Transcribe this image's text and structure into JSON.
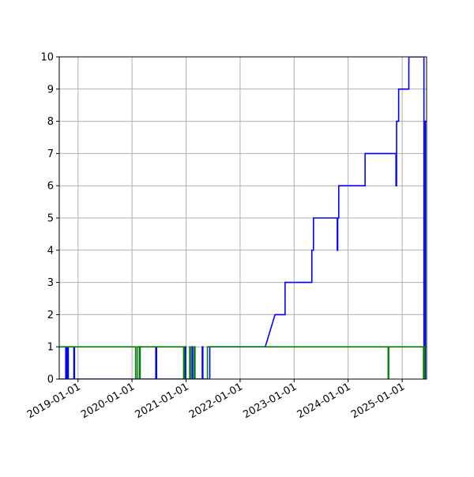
{
  "chart_data": {
    "type": "line",
    "title": "",
    "xlabel": "",
    "ylabel": "",
    "x_axis_type": "date",
    "xlim": [
      "2018-08-27",
      "2025-06-15"
    ],
    "ylim": [
      0,
      10
    ],
    "x_ticks": [
      "2019-01-01",
      "2020-01-01",
      "2021-01-01",
      "2022-01-01",
      "2023-01-01",
      "2024-01-01",
      "2025-01-01"
    ],
    "y_ticks": [
      0,
      1,
      2,
      3,
      4,
      5,
      6,
      7,
      8,
      9,
      10
    ],
    "grid": true,
    "legend": null,
    "series": [
      {
        "color": "#0000ff",
        "points": [
          [
            "2018-08-27",
            0
          ],
          [
            "2018-10-10",
            0
          ],
          [
            "2018-10-10",
            1
          ],
          [
            "2018-10-13",
            1
          ],
          [
            "2018-10-13",
            0
          ],
          [
            "2018-10-16",
            0
          ],
          [
            "2018-10-16",
            1
          ],
          [
            "2018-10-20",
            1
          ],
          [
            "2018-10-20",
            0
          ],
          [
            "2018-10-23",
            0
          ],
          [
            "2018-10-23",
            1
          ],
          [
            "2018-10-27",
            1
          ],
          [
            "2018-10-27",
            0
          ],
          [
            "2018-12-04",
            0
          ],
          [
            "2018-12-04",
            1
          ],
          [
            "2018-12-08",
            1
          ],
          [
            "2018-12-08",
            0
          ],
          [
            "2020-02-20",
            0
          ],
          [
            "2020-02-20",
            1
          ],
          [
            "2020-02-25",
            1
          ],
          [
            "2020-02-25",
            0
          ],
          [
            "2020-06-10",
            0
          ],
          [
            "2020-06-10",
            1
          ],
          [
            "2020-06-15",
            1
          ],
          [
            "2020-06-15",
            0
          ],
          [
            "2020-12-25",
            0
          ],
          [
            "2020-12-25",
            1
          ],
          [
            "2020-12-29",
            1
          ],
          [
            "2020-12-29",
            0
          ],
          [
            "2021-02-10",
            0
          ],
          [
            "2021-02-10",
            1
          ],
          [
            "2021-02-14",
            1
          ],
          [
            "2021-02-14",
            0
          ],
          [
            "2021-04-20",
            0
          ],
          [
            "2021-04-20",
            1
          ],
          [
            "2021-04-24",
            1
          ],
          [
            "2021-04-24",
            0
          ],
          [
            "2021-06-10",
            0
          ],
          [
            "2021-06-10",
            1
          ],
          [
            "2022-06-20",
            1
          ],
          [
            "2022-08-25",
            2
          ],
          [
            "2022-11-01",
            2
          ],
          [
            "2022-11-01",
            3
          ],
          [
            "2023-05-01",
            3
          ],
          [
            "2023-05-01",
            4
          ],
          [
            "2023-05-12",
            4
          ],
          [
            "2023-05-12",
            5
          ],
          [
            "2023-10-20",
            5
          ],
          [
            "2023-10-20",
            4
          ],
          [
            "2023-10-23",
            4
          ],
          [
            "2023-10-23",
            5
          ],
          [
            "2023-10-30",
            5
          ],
          [
            "2023-10-30",
            6
          ],
          [
            "2024-04-25",
            6
          ],
          [
            "2024-04-25",
            7
          ],
          [
            "2024-11-20",
            7
          ],
          [
            "2024-11-20",
            6
          ],
          [
            "2024-11-24",
            6
          ],
          [
            "2024-11-24",
            8
          ],
          [
            "2024-12-08",
            8
          ],
          [
            "2024-12-08",
            9
          ],
          [
            "2025-02-15",
            9
          ],
          [
            "2025-02-15",
            10
          ],
          [
            "2025-05-15",
            10
          ],
          [
            "2025-05-15",
            11
          ],
          [
            "2025-05-28",
            11
          ],
          [
            "2025-05-28",
            0
          ],
          [
            "2025-06-06",
            0
          ],
          [
            "2025-06-06",
            8
          ],
          [
            "2025-06-15",
            8
          ]
        ]
      },
      {
        "color": "#008000",
        "points": [
          [
            "2018-08-27",
            1
          ],
          [
            "2020-01-25",
            1
          ],
          [
            "2020-01-25",
            0
          ],
          [
            "2020-02-05",
            0
          ],
          [
            "2020-02-05",
            1
          ],
          [
            "2020-02-20",
            1
          ],
          [
            "2020-02-20",
            0
          ],
          [
            "2020-02-24",
            0
          ],
          [
            "2020-02-24",
            1
          ],
          [
            "2020-12-15",
            1
          ],
          [
            "2020-12-15",
            0
          ],
          [
            "2020-12-18",
            0
          ],
          [
            "2020-12-18",
            1
          ],
          [
            "2020-12-21",
            1
          ],
          [
            "2020-12-21",
            0
          ],
          [
            "2021-01-25",
            0
          ],
          [
            "2021-01-25",
            1
          ],
          [
            "2021-01-30",
            1
          ],
          [
            "2021-01-30",
            0
          ],
          [
            "2021-02-25",
            0
          ],
          [
            "2021-02-25",
            1
          ],
          [
            "2021-03-02",
            1
          ],
          [
            "2021-03-02",
            0
          ],
          [
            "2021-05-25",
            0
          ],
          [
            "2021-05-25",
            1
          ],
          [
            "2024-09-28",
            1
          ],
          [
            "2024-09-28",
            0
          ],
          [
            "2024-10-02",
            0
          ],
          [
            "2024-10-02",
            1
          ],
          [
            "2025-05-25",
            1
          ],
          [
            "2025-05-25",
            0
          ],
          [
            "2025-06-02",
            0
          ],
          [
            "2025-06-02",
            1
          ],
          [
            "2025-06-15",
            1
          ]
        ]
      }
    ]
  }
}
